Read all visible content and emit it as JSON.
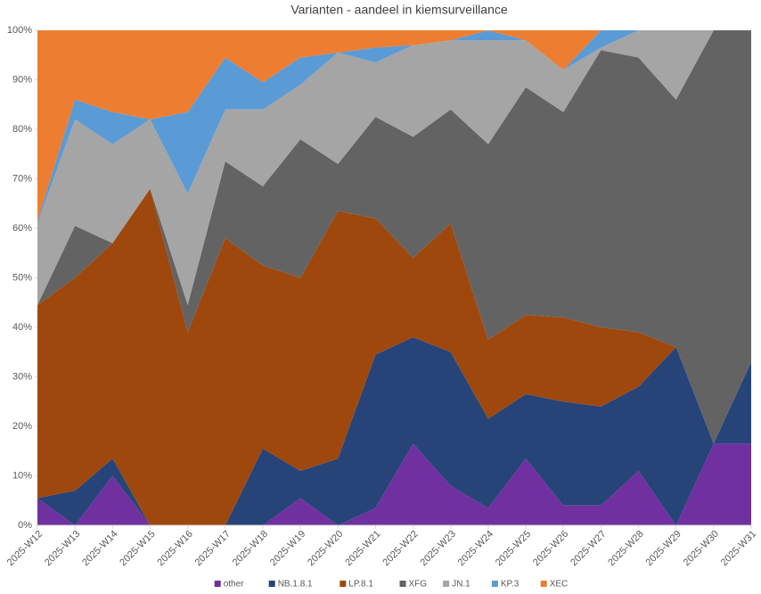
{
  "chart_data": {
    "type": "stacked-area-percent",
    "title": "Varianten - aandeel in kiemsurveillance",
    "categories": [
      "2025-W12",
      "2025-W13",
      "2025-W14",
      "2025-W15",
      "2025-W16",
      "2025-W17",
      "2025-W18",
      "2025-W19",
      "2025-W20",
      "2025-W21",
      "2025-W22",
      "2025-W23",
      "2025-W24",
      "2025-W25",
      "2025-W26",
      "2025-W27",
      "2025-W28",
      "2025-W29",
      "2025-W30",
      "2025-W31"
    ],
    "series": [
      {
        "name": "other",
        "color": "#7030a0",
        "values": [
          5.5,
          0,
          10,
          0,
          0,
          0,
          0,
          5.5,
          0,
          3.5,
          16.5,
          8,
          3.5,
          13.5,
          4,
          4,
          11,
          0,
          16.5,
          16.5
        ]
      },
      {
        "name": "NB.1.8.1",
        "color": "#264478",
        "values": [
          0,
          7,
          3.5,
          0,
          0,
          0,
          15.5,
          5.5,
          13.5,
          31,
          21.5,
          27,
          18,
          13,
          21,
          20,
          17,
          36,
          0,
          16.5
        ]
      },
      {
        "name": "LP.8.1",
        "color": "#9e480e",
        "values": [
          39,
          43,
          43.5,
          68,
          39,
          58,
          37,
          39,
          50,
          27.5,
          16,
          26,
          16,
          16,
          17,
          16,
          11,
          0,
          0,
          0
        ]
      },
      {
        "name": "XFG",
        "color": "#636363",
        "values": [
          0,
          10.5,
          0,
          0,
          5.5,
          15.5,
          16,
          28,
          9.5,
          20.5,
          24.5,
          23,
          39.5,
          46,
          41.5,
          56,
          55.5,
          50,
          83.5,
          67
        ]
      },
      {
        "name": "JN.1",
        "color": "#a5a5a5",
        "values": [
          16.5,
          21.5,
          20,
          14,
          22.5,
          10.5,
          15.5,
          11,
          22.5,
          11,
          18.5,
          14,
          21,
          9.5,
          8.5,
          0.5,
          5.5,
          14,
          0,
          0
        ]
      },
      {
        "name": "KP.3",
        "color": "#5b9bd5",
        "values": [
          0.5,
          4,
          6.5,
          0,
          16.5,
          10.5,
          5.5,
          5.5,
          0,
          3,
          0,
          0,
          2,
          0,
          0,
          3.5,
          0,
          0,
          0,
          0
        ]
      },
      {
        "name": "XEC",
        "color": "#ed7d31",
        "values": [
          38.5,
          14,
          16.5,
          18,
          16.5,
          5.5,
          10.5,
          5.5,
          4.5,
          3.5,
          3,
          2,
          0,
          2,
          8,
          0,
          0,
          0,
          0,
          0
        ]
      }
    ],
    "ylim": [
      0,
      100
    ],
    "yticks": [
      {
        "value": 0,
        "label": "0%"
      },
      {
        "value": 10,
        "label": "10%"
      },
      {
        "value": 20,
        "label": "20%"
      },
      {
        "value": 30,
        "label": "30%"
      },
      {
        "value": 40,
        "label": "40%"
      },
      {
        "value": 50,
        "label": "50%"
      },
      {
        "value": 60,
        "label": "60%"
      },
      {
        "value": 70,
        "label": "70%"
      },
      {
        "value": 80,
        "label": "80%"
      },
      {
        "value": 90,
        "label": "90%"
      },
      {
        "value": 100,
        "label": "100%"
      }
    ],
    "legend": "bottom"
  }
}
